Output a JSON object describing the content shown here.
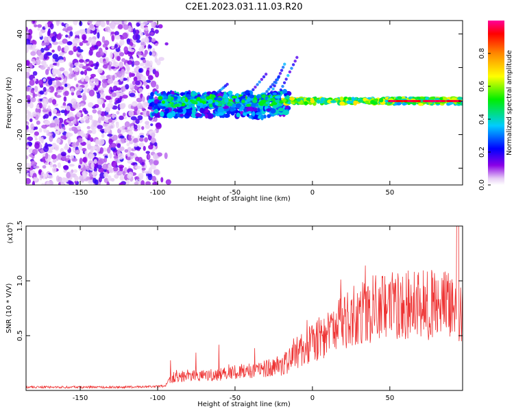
{
  "title": "C2E1.2023.031.11.03.R20",
  "chart_data": [
    {
      "type": "heatmap",
      "xlabel": "Height of straight line (km)",
      "ylabel": "Frequency (Hz)",
      "xlim": [
        -185,
        97
      ],
      "ylim": [
        -50,
        48
      ],
      "xticks": [
        -150,
        -100,
        -50,
        0,
        50
      ],
      "yticks": [
        -40,
        -20,
        0,
        20,
        40
      ],
      "colorbar": {
        "label": "Normalized spectral amplitude",
        "range": [
          0,
          1
        ],
        "ticks": [
          0.0,
          0.2,
          0.4,
          0.6,
          0.8
        ]
      },
      "regions": [
        {
          "x_from": -185,
          "x_to": -100,
          "y_from": -50,
          "y_to": 48,
          "amplitude": 0.1
        },
        {
          "x_from": -100,
          "x_to": -20,
          "y_from": -10,
          "y_to": 8,
          "amplitude": 0.35
        },
        {
          "x_from": -20,
          "x_to": 50,
          "y_from": -2,
          "y_to": 2,
          "amplitude": 0.55
        },
        {
          "x_from": 50,
          "x_to": 97,
          "y_from": -2,
          "y_to": 2,
          "amplitude": 0.95
        }
      ]
    },
    {
      "type": "line",
      "xlabel": "Height of straight line (km)",
      "ylabel": "SNR (10 * V/V)",
      "y_multiplier": "(x10",
      "y_multiplier_exp": "4",
      "xlim": [
        -185,
        97
      ],
      "ylim": [
        0,
        1.5
      ],
      "xticks": [
        -150,
        -100,
        -50,
        0,
        50
      ],
      "yticks": [
        0.5,
        1.0,
        1.5
      ],
      "ytick_labels": [
        "0.5",
        "1.0",
        "1.5"
      ],
      "series": [
        {
          "color": "#ee3333",
          "envelope_x": [
            -185,
            -120,
            -95,
            -92,
            -80,
            -70,
            -60,
            -50,
            -40,
            -30,
            -20,
            -15,
            -10,
            -5,
            0,
            5,
            10,
            15,
            20,
            25,
            30,
            35,
            40,
            45,
            50,
            60,
            70,
            80,
            90,
            95,
            97
          ],
          "envelope_y": [
            0.03,
            0.03,
            0.04,
            0.12,
            0.15,
            0.14,
            0.15,
            0.17,
            0.19,
            0.21,
            0.24,
            0.28,
            0.36,
            0.4,
            0.45,
            0.5,
            0.55,
            0.6,
            0.64,
            0.7,
            0.74,
            0.76,
            0.78,
            0.8,
            0.8,
            0.82,
            0.83,
            0.8,
            0.82,
            0.78,
            0.8
          ]
        }
      ]
    }
  ]
}
